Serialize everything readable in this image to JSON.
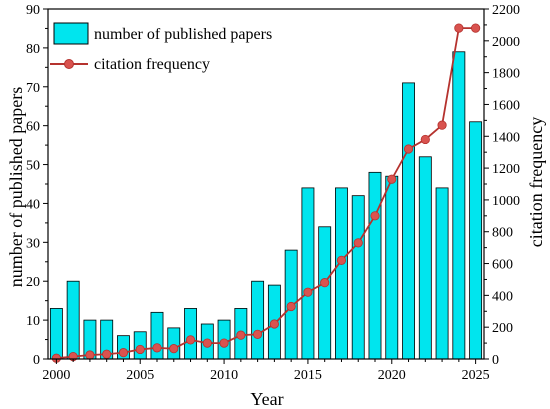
{
  "chart_data": {
    "type": "bar",
    "x_label": "Year",
    "y_left_label": "number of published papers",
    "y_right_label": "citation frequency",
    "x": [
      2000,
      2001,
      2002,
      2003,
      2004,
      2005,
      2006,
      2007,
      2008,
      2009,
      2010,
      2011,
      2012,
      2013,
      2014,
      2015,
      2016,
      2017,
      2018,
      2019,
      2020,
      2021,
      2022,
      2023,
      2024,
      2025
    ],
    "x_ticks": [
      "2000",
      "2005",
      "2010",
      "2015",
      "2020",
      "2025"
    ],
    "x_range": [
      1999.5,
      2025.5
    ],
    "y_left_range": [
      0,
      90
    ],
    "y_left_ticks": [
      "0",
      "10",
      "20",
      "30",
      "40",
      "50",
      "60",
      "70",
      "80",
      "90"
    ],
    "y_right_range": [
      0,
      2200
    ],
    "y_right_ticks": [
      "0",
      "200",
      "400",
      "600",
      "800",
      "1000",
      "1200",
      "1400",
      "1600",
      "1800",
      "2000",
      "2200"
    ],
    "legend_position": "top-left",
    "series": [
      {
        "name": "number of published papers",
        "type": "bar",
        "axis": "left",
        "color": "#00e5ee",
        "values": [
          13,
          20,
          10,
          10,
          6,
          7,
          12,
          8,
          13,
          9,
          10,
          13,
          20,
          19,
          28,
          44,
          34,
          44,
          42,
          48,
          47,
          71,
          52,
          44,
          79,
          61
        ]
      },
      {
        "name": "citation frequency",
        "type": "line",
        "axis": "right",
        "color": "#b5322e",
        "marker_color": "#d9534f",
        "values": [
          5,
          15,
          25,
          30,
          40,
          60,
          70,
          65,
          120,
          100,
          100,
          150,
          155,
          220,
          330,
          420,
          480,
          620,
          730,
          900,
          1130,
          1320,
          1380,
          1470,
          2080,
          2080
        ]
      }
    ]
  }
}
